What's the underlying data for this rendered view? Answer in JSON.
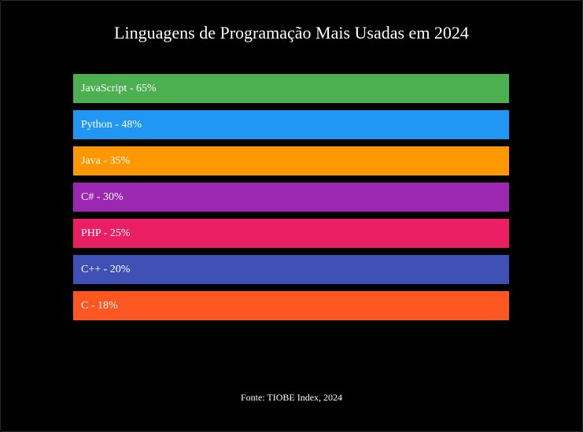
{
  "title": "Linguagens de Programação Mais Usadas em 2024",
  "source": "Fonte: TIOBE Index, 2024",
  "chart_data": {
    "type": "bar",
    "orientation": "horizontal",
    "title": "Linguagens de Programação Mais Usadas em 2024",
    "categories": [
      "JavaScript",
      "Python",
      "Java",
      "C#",
      "PHP",
      "C++",
      "C"
    ],
    "values": [
      65,
      48,
      35,
      30,
      25,
      20,
      18
    ],
    "unit": "%",
    "labels": [
      "JavaScript - 65%",
      "Python - 48%",
      "Java - 35%",
      "C# - 30%",
      "PHP - 25%",
      "C++ - 20%",
      "C - 18%"
    ],
    "colors": [
      "#4caf50",
      "#2196f3",
      "#ff9800",
      "#9c27b0",
      "#e91e63",
      "#3f51b5",
      "#ff5722"
    ],
    "legend": "none",
    "grid": false
  }
}
